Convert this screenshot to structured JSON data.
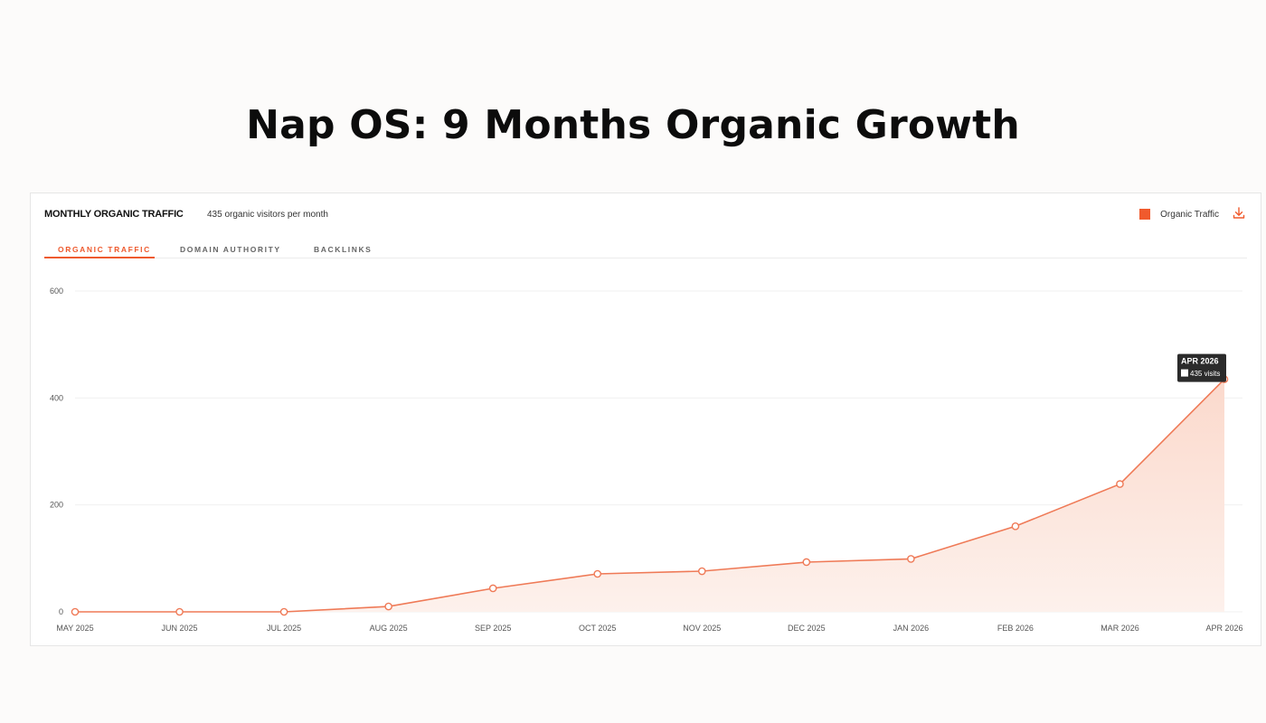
{
  "page": {
    "headline": "Nap OS: 9 Months Organic Growth"
  },
  "card": {
    "title": "MONTHLY ORGANIC TRAFFIC",
    "subtitle": "435 organic visitors per month",
    "legend_label": "Organic Traffic",
    "tabs": [
      {
        "label": "ORGANIC TRAFFIC",
        "active": true
      },
      {
        "label": "DOMAIN AUTHORITY",
        "active": false
      },
      {
        "label": "BACKLINKS",
        "active": false
      }
    ],
    "tooltip": {
      "title": "APR 2026",
      "value_label": "435 visits"
    },
    "icons": {
      "download": "download-icon"
    }
  },
  "colors": {
    "accent": "#f05a2d",
    "line": "#ef7a57",
    "fill_top": "#fbd9cc",
    "fill_bottom": "#fdf1ec",
    "tooltip_bg": "#2b2b2b"
  },
  "chart_data": {
    "type": "area",
    "categories": [
      "MAY 2025",
      "JUN 2025",
      "JUL 2025",
      "AUG 2025",
      "SEP 2025",
      "OCT 2025",
      "NOV 2025",
      "DEC 2025",
      "JAN 2026",
      "FEB 2026",
      "MAR 2026",
      "APR 2026"
    ],
    "series": [
      {
        "name": "Organic Traffic",
        "values": [
          0,
          0,
          0,
          10,
          44,
          71,
          76,
          93,
          99,
          160,
          239,
          435
        ]
      }
    ],
    "yticks": [
      0,
      200,
      400,
      600
    ],
    "ylim": [
      0,
      600
    ],
    "grid": true,
    "legend": "top-right",
    "highlight_index": 11
  }
}
